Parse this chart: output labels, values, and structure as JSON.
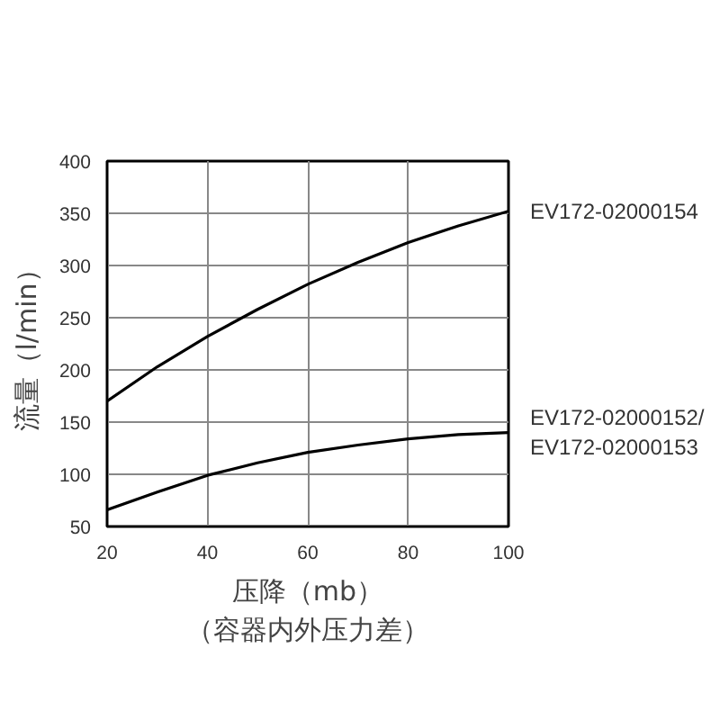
{
  "chart_data": {
    "type": "line",
    "xlabel": "压降（mb）（容器内外压力差）",
    "ylabel": "流量（l/min）",
    "x": [
      20,
      30,
      40,
      50,
      60,
      70,
      80,
      90,
      100
    ],
    "series": [
      {
        "name": "EV172-02000154",
        "color": "#000000",
        "values": [
          170,
          203,
          232,
          258,
          282,
          303,
          322,
          338,
          352
        ]
      },
      {
        "name": "EV172-02000152/\nEV172-02000153",
        "color": "#000000",
        "values": [
          66,
          83,
          99,
          111,
          121,
          128,
          134,
          138,
          140
        ]
      }
    ],
    "xlim": [
      20,
      100
    ],
    "ylim": [
      50,
      400
    ],
    "xticks": [
      20,
      40,
      60,
      80,
      100
    ],
    "yticks": [
      50,
      100,
      150,
      200,
      250,
      300,
      350,
      400
    ],
    "grid": true,
    "marker": "none",
    "line_style": "solid"
  }
}
